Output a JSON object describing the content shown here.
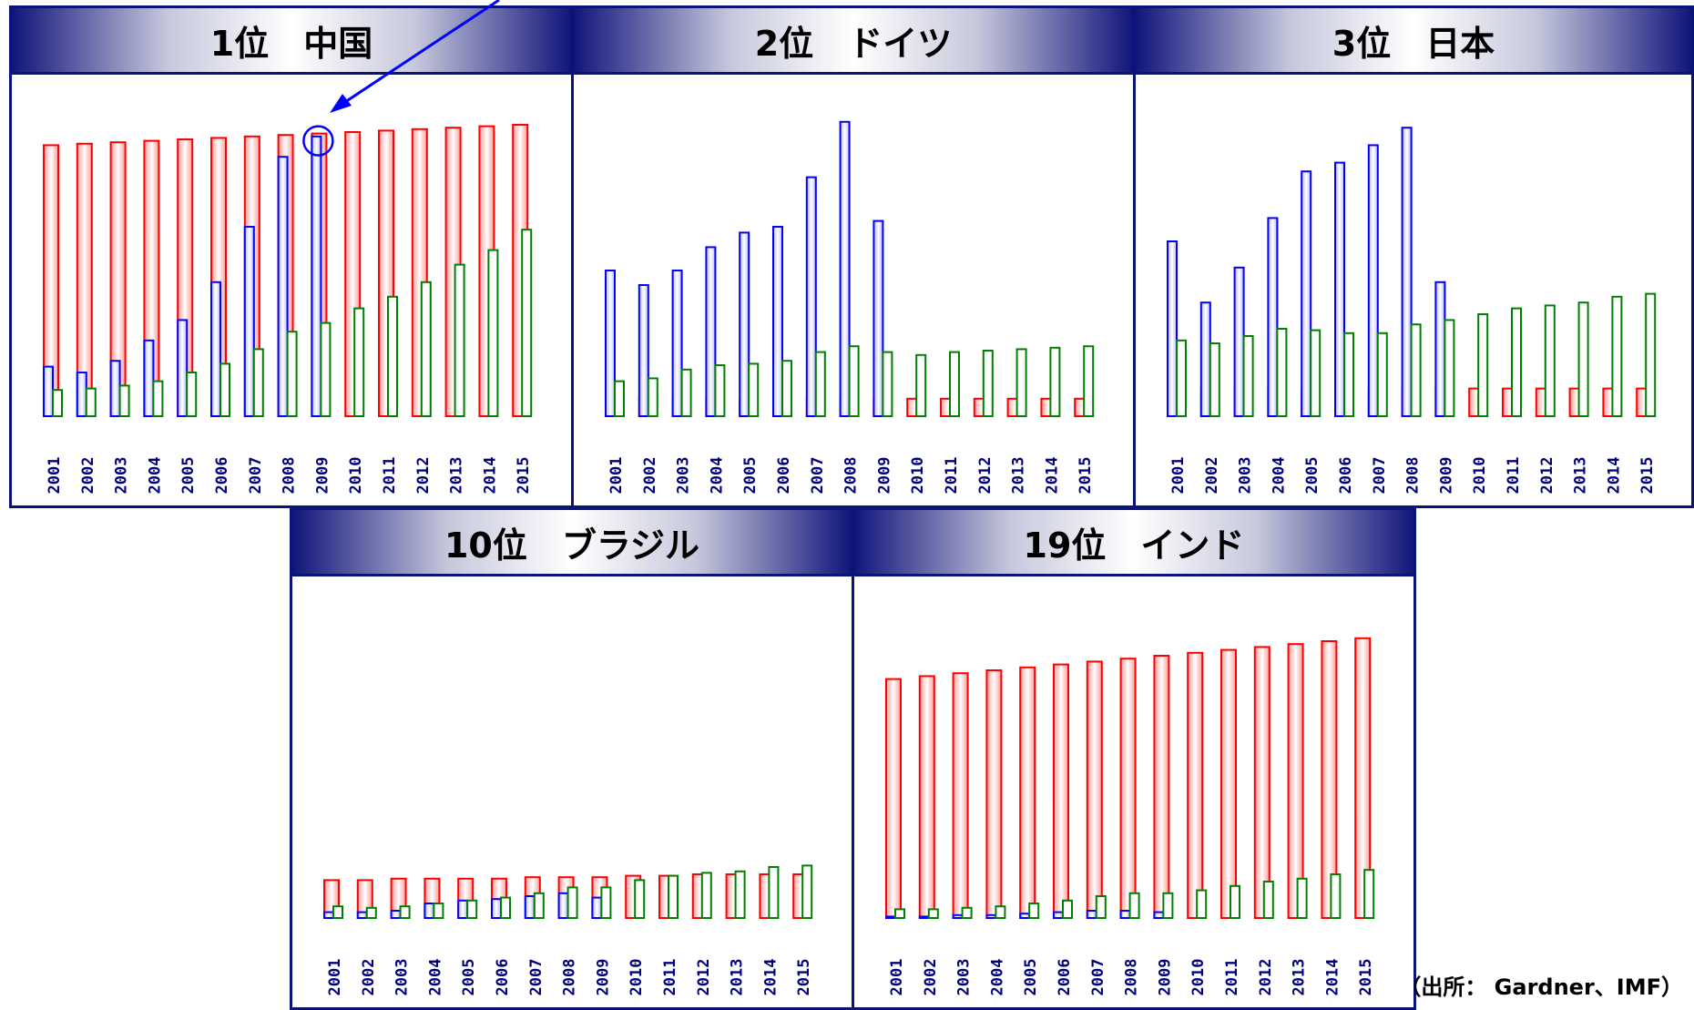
{
  "source_note": "（出所： Gardner、IMF）",
  "colors": {
    "series_red": "#ff0000",
    "series_blue": "#0000ff",
    "series_green": "#008000",
    "frame": "#0a1478"
  },
  "chart_data": [
    {
      "type": "bar",
      "title": "1位　中国",
      "categories": [
        "2001",
        "2002",
        "2003",
        "2004",
        "2005",
        "2006",
        "2007",
        "2008",
        "2009",
        "2010",
        "2011",
        "2012",
        "2013",
        "2014",
        "2015"
      ],
      "ylim": [
        0,
        100
      ],
      "series": [
        {
          "color": "#ff0000",
          "values": [
            93,
            93.5,
            94,
            94.5,
            95,
            95.5,
            96,
            96.5,
            97,
            97.5,
            98,
            98.5,
            99,
            99.5,
            100
          ]
        },
        {
          "color": "#0000ff",
          "values": [
            17,
            15,
            19,
            26,
            33,
            46,
            65,
            89,
            96,
            null,
            null,
            null,
            null,
            null,
            null
          ]
        },
        {
          "color": "#008000",
          "values": [
            9,
            9.5,
            10.5,
            12,
            15,
            18,
            23,
            29,
            32,
            37,
            41,
            46,
            52,
            57,
            64
          ]
        }
      ],
      "annotation": {
        "type": "circle-arrow",
        "category": "2009"
      }
    },
    {
      "type": "bar",
      "title": "2位　ドイツ",
      "categories": [
        "2001",
        "2002",
        "2003",
        "2004",
        "2005",
        "2006",
        "2007",
        "2008",
        "2009",
        "2010",
        "2011",
        "2012",
        "2013",
        "2014",
        "2015"
      ],
      "ylim": [
        0,
        100
      ],
      "series": [
        {
          "color": "#ff0000",
          "values": [
            6,
            6,
            6,
            6,
            6,
            6,
            6,
            6,
            6,
            6,
            6,
            6,
            6,
            6,
            6
          ]
        },
        {
          "color": "#0000ff",
          "values": [
            50,
            45,
            50,
            58,
            63,
            65,
            82,
            101,
            67,
            null,
            null,
            null,
            null,
            null,
            null
          ]
        },
        {
          "color": "#008000",
          "values": [
            12,
            13,
            16,
            17.5,
            18,
            19,
            22,
            24,
            22,
            21,
            22,
            22.5,
            23,
            23.5,
            24
          ]
        }
      ]
    },
    {
      "type": "bar",
      "title": "3位　日本",
      "categories": [
        "2001",
        "2002",
        "2003",
        "2004",
        "2005",
        "2006",
        "2007",
        "2008",
        "2009",
        "2010",
        "2011",
        "2012",
        "2013",
        "2014",
        "2015"
      ],
      "ylim": [
        0,
        100
      ],
      "series": [
        {
          "color": "#ff0000",
          "values": [
            9.5,
            9.5,
            9.5,
            9.5,
            9.5,
            9.5,
            9.5,
            9.5,
            9.5,
            9.5,
            9.5,
            9.5,
            9.5,
            9.5,
            9.5
          ]
        },
        {
          "color": "#0000ff",
          "values": [
            60,
            39,
            51,
            68,
            84,
            87,
            93,
            99,
            46,
            null,
            null,
            null,
            null,
            null,
            null
          ]
        },
        {
          "color": "#008000",
          "values": [
            26,
            25,
            27.5,
            30,
            29.5,
            28.5,
            28.5,
            31.5,
            33,
            35,
            37,
            38,
            39,
            41,
            42
          ]
        }
      ]
    },
    {
      "type": "bar",
      "title": "10位　ブラジル",
      "categories": [
        "2001",
        "2002",
        "2003",
        "2004",
        "2005",
        "2006",
        "2007",
        "2008",
        "2009",
        "2010",
        "2011",
        "2012",
        "2013",
        "2014",
        "2015"
      ],
      "ylim": [
        0,
        100
      ],
      "series": [
        {
          "color": "#ff0000",
          "values": [
            13,
            13,
            13.5,
            13.5,
            13.5,
            13.5,
            14,
            14,
            14,
            14.5,
            14.5,
            15,
            15,
            15,
            15
          ]
        },
        {
          "color": "#0000ff",
          "values": [
            2,
            2,
            2.5,
            5,
            6,
            6.5,
            7.5,
            8.5,
            7,
            null,
            null,
            null,
            null,
            null,
            null
          ]
        },
        {
          "color": "#008000",
          "values": [
            4,
            3.5,
            4,
            5,
            6,
            7,
            8.5,
            10.5,
            10.5,
            13,
            14.5,
            15.5,
            16,
            17.5,
            18
          ]
        }
      ]
    },
    {
      "type": "bar",
      "title": "19位　インド",
      "categories": [
        "2001",
        "2002",
        "2003",
        "2004",
        "2005",
        "2006",
        "2007",
        "2008",
        "2009",
        "2010",
        "2011",
        "2012",
        "2013",
        "2014",
        "2015"
      ],
      "ylim": [
        0,
        100
      ],
      "series": [
        {
          "color": "#ff0000",
          "values": [
            82,
            83,
            84,
            85,
            86,
            87,
            88,
            89,
            90,
            91,
            92,
            93,
            94,
            95,
            96
          ]
        },
        {
          "color": "#0000ff",
          "values": [
            0.5,
            0.5,
            1,
            1,
            1.5,
            2,
            2.5,
            2.5,
            2,
            null,
            null,
            null,
            null,
            null,
            null
          ]
        },
        {
          "color": "#008000",
          "values": [
            3,
            3,
            3.5,
            4,
            5,
            6,
            7.5,
            8.5,
            8.5,
            9.5,
            11,
            12.5,
            13.5,
            15,
            16.5
          ]
        }
      ]
    }
  ]
}
